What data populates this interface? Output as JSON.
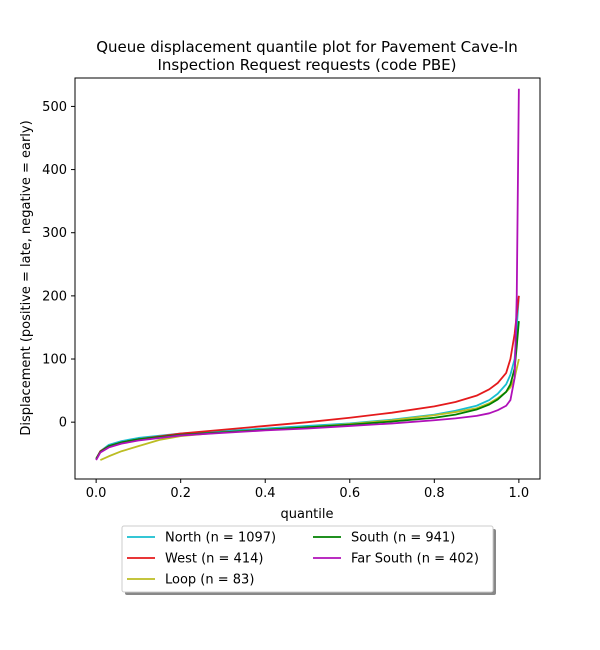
{
  "chart_data": {
    "type": "line",
    "title_lines": [
      "Queue displacement quantile plot for Pavement Cave-In",
      "Inspection Request  requests (code PBE)"
    ],
    "xlabel": "quantile",
    "ylabel": "Displacement (positive = late, negative = early)",
    "xlim": [
      -0.05,
      1.05
    ],
    "ylim": [
      -90,
      545
    ],
    "xticks": [
      0.0,
      0.2,
      0.4,
      0.6,
      0.8,
      1.0
    ],
    "xtick_labels": [
      "0.0",
      "0.2",
      "0.4",
      "0.6",
      "0.8",
      "1.0"
    ],
    "yticks": [
      0,
      100,
      200,
      300,
      400,
      500
    ],
    "ytick_labels": [
      "0",
      "100",
      "200",
      "300",
      "400",
      "500"
    ],
    "grid": false,
    "legend_position": "below",
    "series": [
      {
        "name": "North (n = 1097)",
        "color": "#17becf",
        "x": [
          0.0,
          0.01,
          0.03,
          0.06,
          0.1,
          0.2,
          0.3,
          0.4,
          0.5,
          0.6,
          0.7,
          0.8,
          0.85,
          0.9,
          0.93,
          0.95,
          0.97,
          0.98,
          0.99,
          0.995,
          1.0
        ],
        "y": [
          -58,
          -46,
          -36,
          -30,
          -25,
          -18,
          -14,
          -10,
          -6,
          -2,
          4,
          12,
          18,
          26,
          35,
          45,
          60,
          75,
          100,
          150,
          200
        ]
      },
      {
        "name": "West (n = 414)",
        "color": "#e41a1c",
        "x": [
          0.0,
          0.01,
          0.03,
          0.06,
          0.1,
          0.2,
          0.3,
          0.4,
          0.5,
          0.6,
          0.7,
          0.8,
          0.85,
          0.9,
          0.93,
          0.95,
          0.97,
          0.98,
          0.99,
          0.995,
          1.0
        ],
        "y": [
          -58,
          -46,
          -38,
          -32,
          -27,
          -18,
          -12,
          -6,
          0,
          7,
          15,
          25,
          32,
          42,
          52,
          62,
          78,
          100,
          140,
          170,
          200
        ]
      },
      {
        "name": "Loop (n = 83)",
        "color": "#bcbd22",
        "x": [
          0.01,
          0.03,
          0.06,
          0.1,
          0.15,
          0.2,
          0.3,
          0.4,
          0.5,
          0.6,
          0.7,
          0.8,
          0.85,
          0.9,
          0.93,
          0.95,
          0.97,
          0.98,
          0.99,
          1.0
        ],
        "y": [
          -60,
          -54,
          -46,
          -38,
          -28,
          -22,
          -16,
          -12,
          -8,
          -3,
          3,
          11,
          16,
          22,
          30,
          38,
          48,
          55,
          70,
          100
        ]
      },
      {
        "name": "South (n = 941)",
        "color": "#008000",
        "x": [
          0.0,
          0.01,
          0.03,
          0.06,
          0.1,
          0.2,
          0.3,
          0.4,
          0.5,
          0.6,
          0.7,
          0.8,
          0.85,
          0.9,
          0.93,
          0.95,
          0.97,
          0.98,
          0.99,
          0.995,
          1.0
        ],
        "y": [
          -58,
          -47,
          -38,
          -32,
          -27,
          -20,
          -16,
          -12,
          -8,
          -4,
          1,
          7,
          12,
          20,
          28,
          36,
          48,
          60,
          85,
          120,
          160
        ]
      },
      {
        "name": "Far South (n = 402)",
        "color": "#b010b8",
        "x": [
          0.0,
          0.01,
          0.03,
          0.06,
          0.1,
          0.2,
          0.3,
          0.4,
          0.5,
          0.6,
          0.7,
          0.8,
          0.85,
          0.9,
          0.93,
          0.95,
          0.97,
          0.98,
          0.99,
          0.995,
          1.0
        ],
        "y": [
          -60,
          -48,
          -40,
          -34,
          -29,
          -21,
          -17,
          -13,
          -10,
          -6,
          -2,
          3,
          6,
          10,
          14,
          19,
          26,
          35,
          70,
          200,
          528
        ]
      }
    ]
  }
}
